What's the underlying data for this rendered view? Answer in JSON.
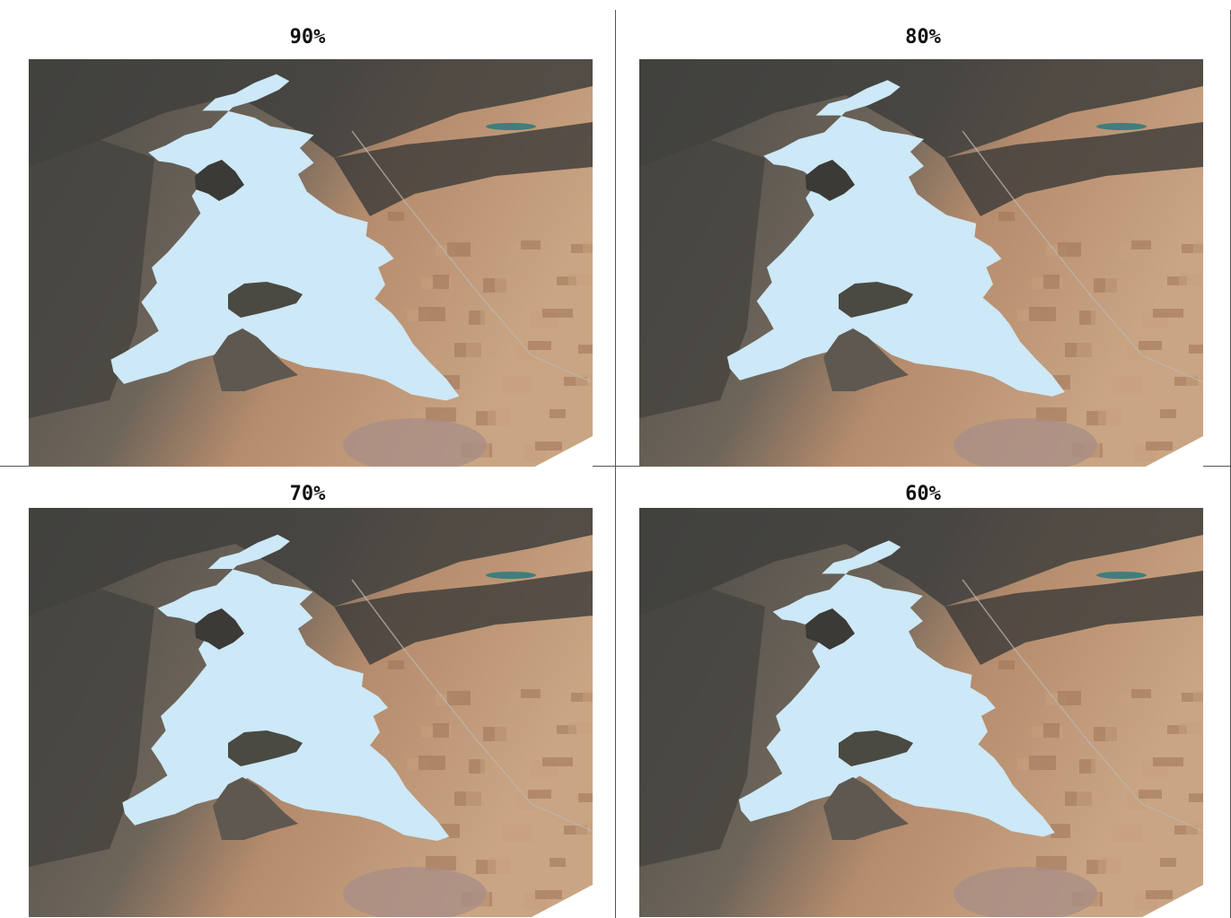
{
  "panels": [
    {
      "label": "90%",
      "water_level_pct": 90
    },
    {
      "label": "80%",
      "water_level_pct": 80
    },
    {
      "label": "70%",
      "water_level_pct": 70
    },
    {
      "label": "60%",
      "water_level_pct": 60
    }
  ],
  "colors": {
    "water": "#cde8f7",
    "terrain_dark": "#4a4946",
    "terrain_mid": "#6e655a",
    "farmland": "#b58c6d",
    "farmland_light": "#c9a584",
    "town": "#a98e86",
    "small_lake": "#3f7e7c"
  }
}
